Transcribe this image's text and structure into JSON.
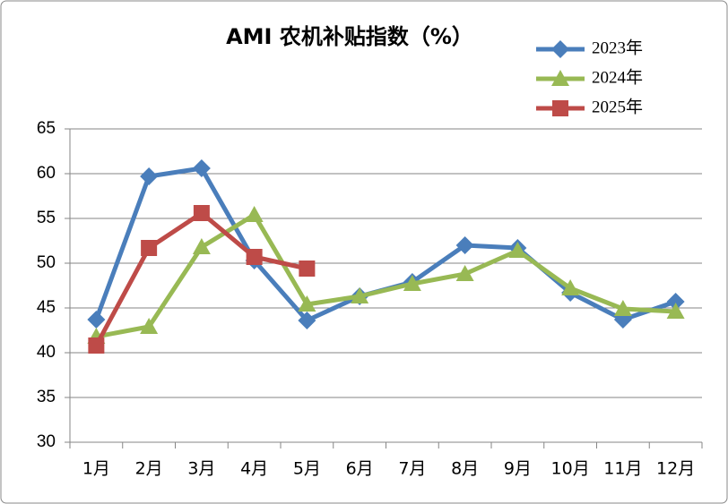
{
  "chart_data": {
    "type": "line",
    "title": "AMI 农机补贴指数（%）",
    "categories": [
      "1月",
      "2月",
      "3月",
      "4月",
      "5月",
      "6月",
      "7月",
      "8月",
      "9月",
      "10月",
      "11月",
      "12月"
    ],
    "series": [
      {
        "name": "2023年",
        "color": "#4a7ebb",
        "marker": "diamond",
        "values": [
          43.7,
          59.7,
          60.6,
          50.3,
          43.6,
          46.3,
          47.9,
          52.0,
          51.7,
          46.7,
          43.7,
          45.7
        ]
      },
      {
        "name": "2024年",
        "color": "#98b954",
        "marker": "triangle",
        "values": [
          41.8,
          42.9,
          51.8,
          55.4,
          45.4,
          46.3,
          47.7,
          48.8,
          51.4,
          47.2,
          44.9,
          44.6
        ]
      },
      {
        "name": "2025年",
        "color": "#be4b48",
        "marker": "square",
        "values": [
          40.8,
          51.7,
          55.6,
          50.7,
          49.4,
          null,
          null,
          null,
          null,
          null,
          null,
          null
        ]
      }
    ],
    "ylim": [
      30,
      65
    ],
    "yticks": [
      30,
      35,
      40,
      45,
      50,
      55,
      60,
      65
    ],
    "grid": true,
    "legend": "top-right"
  }
}
